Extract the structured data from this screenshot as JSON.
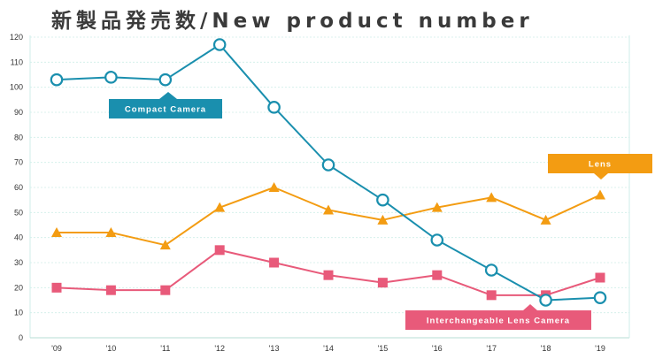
{
  "chart_data": {
    "type": "line",
    "title": "新製品発売数/New product number",
    "categories": [
      "'09",
      "'10",
      "'11",
      "'12",
      "'13",
      "'14",
      "'15",
      "'16",
      "'17",
      "'18",
      "'19"
    ],
    "ylim": [
      0,
      120
    ],
    "yticks": [
      0,
      10,
      20,
      30,
      40,
      50,
      60,
      70,
      80,
      90,
      100,
      110,
      120
    ],
    "grid": true,
    "series": [
      {
        "name": "Compact Camera",
        "color": "#1a8fae",
        "marker": "open-circle",
        "values": [
          103,
          104,
          103,
          117,
          92,
          69,
          55,
          39,
          27,
          15,
          16
        ]
      },
      {
        "name": "Lens",
        "color": "#f39c12",
        "marker": "triangle",
        "values": [
          42,
          42,
          37,
          52,
          60,
          51,
          47,
          52,
          56,
          47,
          57
        ]
      },
      {
        "name": "Interchangeable Lens Camera",
        "color": "#e85a7a",
        "marker": "square",
        "values": [
          20,
          19,
          19,
          35,
          30,
          25,
          22,
          25,
          17,
          17,
          24
        ]
      }
    ]
  }
}
